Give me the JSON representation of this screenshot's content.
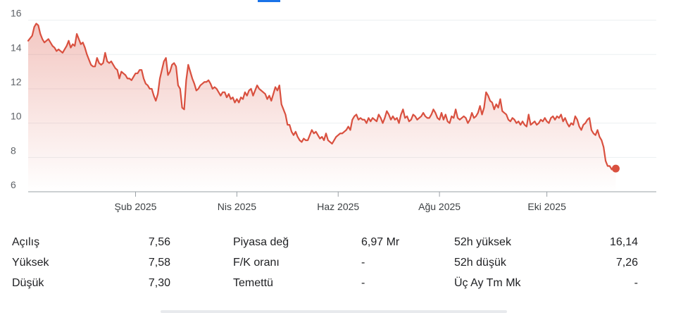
{
  "chart_data": {
    "type": "area",
    "title": "",
    "xlabel": "",
    "ylabel": "",
    "ylim": [
      6,
      16.6
    ],
    "yticks": [
      6,
      8,
      10,
      12,
      14,
      16
    ],
    "ytick_labels": [
      "6",
      "8",
      "10",
      "12",
      "14",
      "16"
    ],
    "xlim": [
      0,
      310
    ],
    "xticks": [
      {
        "label": "Şub 2025",
        "x": 53
      },
      {
        "label": "Nis 2025",
        "x": 103
      },
      {
        "label": "Haz 2025",
        "x": 153
      },
      {
        "label": "Ağu 2025",
        "x": 203
      },
      {
        "label": "Eki 2025",
        "x": 256
      }
    ],
    "line_color": "#d9503f",
    "fill_color": "#d9503f",
    "series": [
      {
        "points": [
          [
            0,
            14.8
          ],
          [
            2,
            15.1
          ],
          [
            3,
            15.6
          ],
          [
            4,
            15.8
          ],
          [
            5,
            15.7
          ],
          [
            6,
            15.2
          ],
          [
            7,
            14.9
          ],
          [
            8,
            14.7
          ],
          [
            9,
            14.8
          ],
          [
            10,
            14.9
          ],
          [
            11,
            14.7
          ],
          [
            12,
            14.5
          ],
          [
            13,
            14.4
          ],
          [
            14,
            14.2
          ],
          [
            15,
            14.3
          ],
          [
            16,
            14.2
          ],
          [
            17,
            14.1
          ],
          [
            18,
            14.3
          ],
          [
            19,
            14.5
          ],
          [
            20,
            14.8
          ],
          [
            21,
            14.4
          ],
          [
            22,
            14.6
          ],
          [
            23,
            14.5
          ],
          [
            24,
            15.2
          ],
          [
            25,
            14.9
          ],
          [
            26,
            14.6
          ],
          [
            27,
            14.7
          ],
          [
            28,
            14.4
          ],
          [
            29,
            14.0
          ],
          [
            30,
            13.7
          ],
          [
            31,
            13.4
          ],
          [
            32,
            13.3
          ],
          [
            33,
            13.3
          ],
          [
            34,
            13.8
          ],
          [
            35,
            13.5
          ],
          [
            36,
            13.4
          ],
          [
            37,
            13.5
          ],
          [
            38,
            14.1
          ],
          [
            39,
            13.6
          ],
          [
            40,
            13.5
          ],
          [
            41,
            13.6
          ],
          [
            42,
            13.4
          ],
          [
            43,
            13.2
          ],
          [
            44,
            13.1
          ],
          [
            45,
            12.6
          ],
          [
            46,
            13.0
          ],
          [
            47,
            12.9
          ],
          [
            48,
            12.8
          ],
          [
            49,
            12.6
          ],
          [
            50,
            12.6
          ],
          [
            51,
            12.5
          ],
          [
            52,
            12.7
          ],
          [
            53,
            12.9
          ],
          [
            54,
            12.9
          ],
          [
            55,
            13.1
          ],
          [
            56,
            13.1
          ],
          [
            57,
            12.6
          ],
          [
            58,
            12.3
          ],
          [
            59,
            12.2
          ],
          [
            60,
            12.0
          ],
          [
            61,
            12.0
          ],
          [
            62,
            11.6
          ],
          [
            63,
            11.3
          ],
          [
            64,
            11.7
          ],
          [
            65,
            12.6
          ],
          [
            66,
            13.1
          ],
          [
            67,
            13.6
          ],
          [
            68,
            13.8
          ],
          [
            69,
            12.8
          ],
          [
            70,
            13.0
          ],
          [
            71,
            13.4
          ],
          [
            72,
            13.5
          ],
          [
            73,
            13.3
          ],
          [
            74,
            12.2
          ],
          [
            75,
            12.0
          ],
          [
            76,
            10.9
          ],
          [
            77,
            10.8
          ],
          [
            78,
            12.5
          ],
          [
            79,
            13.4
          ],
          [
            80,
            13.0
          ],
          [
            81,
            12.6
          ],
          [
            82,
            12.3
          ],
          [
            83,
            11.9
          ],
          [
            84,
            12.0
          ],
          [
            85,
            12.2
          ],
          [
            86,
            12.3
          ],
          [
            87,
            12.4
          ],
          [
            88,
            12.4
          ],
          [
            89,
            12.5
          ],
          [
            90,
            12.3
          ],
          [
            91,
            12.0
          ],
          [
            92,
            12.1
          ],
          [
            93,
            12.0
          ],
          [
            94,
            11.8
          ],
          [
            95,
            11.6
          ],
          [
            96,
            11.8
          ],
          [
            97,
            11.8
          ],
          [
            98,
            11.5
          ],
          [
            99,
            11.7
          ],
          [
            100,
            11.4
          ],
          [
            101,
            11.5
          ],
          [
            102,
            11.2
          ],
          [
            103,
            11.4
          ],
          [
            104,
            11.2
          ],
          [
            105,
            11.5
          ],
          [
            106,
            11.4
          ],
          [
            107,
            11.8
          ],
          [
            108,
            11.6
          ],
          [
            109,
            11.9
          ],
          [
            110,
            12.0
          ],
          [
            111,
            11.6
          ],
          [
            112,
            11.9
          ],
          [
            113,
            12.2
          ],
          [
            114,
            12.0
          ],
          [
            115,
            11.9
          ],
          [
            116,
            11.8
          ],
          [
            117,
            11.7
          ],
          [
            118,
            11.4
          ],
          [
            119,
            11.6
          ],
          [
            120,
            11.3
          ],
          [
            121,
            11.7
          ],
          [
            122,
            12.1
          ],
          [
            123,
            11.9
          ],
          [
            124,
            12.2
          ],
          [
            125,
            11.1
          ],
          [
            126,
            10.8
          ],
          [
            127,
            10.5
          ],
          [
            128,
            9.9
          ],
          [
            129,
            9.9
          ],
          [
            130,
            9.5
          ],
          [
            131,
            9.3
          ],
          [
            132,
            9.5
          ],
          [
            133,
            9.2
          ],
          [
            134,
            9.0
          ],
          [
            135,
            8.9
          ],
          [
            136,
            9.1
          ],
          [
            137,
            9.0
          ],
          [
            138,
            9.0
          ],
          [
            139,
            9.3
          ],
          [
            140,
            9.6
          ],
          [
            141,
            9.4
          ],
          [
            142,
            9.5
          ],
          [
            143,
            9.3
          ],
          [
            144,
            9.1
          ],
          [
            145,
            9.2
          ],
          [
            146,
            9.0
          ],
          [
            147,
            9.4
          ],
          [
            148,
            9.0
          ],
          [
            149,
            8.9
          ],
          [
            150,
            8.8
          ],
          [
            151,
            9.0
          ],
          [
            152,
            9.2
          ],
          [
            153,
            9.3
          ],
          [
            154,
            9.4
          ],
          [
            155,
            9.4
          ],
          [
            156,
            9.5
          ],
          [
            157,
            9.6
          ],
          [
            158,
            9.8
          ],
          [
            159,
            9.6
          ],
          [
            160,
            10.2
          ],
          [
            161,
            10.4
          ],
          [
            162,
            10.5
          ],
          [
            163,
            10.2
          ],
          [
            164,
            10.3
          ],
          [
            165,
            10.2
          ],
          [
            166,
            10.2
          ],
          [
            167,
            10.0
          ],
          [
            168,
            10.3
          ],
          [
            169,
            10.1
          ],
          [
            170,
            10.3
          ],
          [
            171,
            10.2
          ],
          [
            172,
            10.1
          ],
          [
            173,
            10.5
          ],
          [
            174,
            10.3
          ],
          [
            175,
            10.0
          ],
          [
            176,
            10.3
          ],
          [
            177,
            10.7
          ],
          [
            178,
            10.5
          ],
          [
            179,
            10.2
          ],
          [
            180,
            10.4
          ],
          [
            181,
            10.2
          ],
          [
            182,
            10.3
          ],
          [
            183,
            10.0
          ],
          [
            184,
            10.5
          ],
          [
            185,
            10.8
          ],
          [
            186,
            10.3
          ],
          [
            187,
            10.4
          ],
          [
            188,
            10.1
          ],
          [
            189,
            10.2
          ],
          [
            190,
            10.5
          ],
          [
            191,
            10.4
          ],
          [
            192,
            10.2
          ],
          [
            193,
            10.3
          ],
          [
            194,
            10.4
          ],
          [
            195,
            10.6
          ],
          [
            196,
            10.4
          ],
          [
            197,
            10.3
          ],
          [
            198,
            10.3
          ],
          [
            199,
            10.5
          ],
          [
            200,
            10.8
          ],
          [
            201,
            10.6
          ],
          [
            202,
            10.3
          ],
          [
            203,
            10.2
          ],
          [
            204,
            10.6
          ],
          [
            205,
            10.2
          ],
          [
            206,
            10.5
          ],
          [
            207,
            10.1
          ],
          [
            208,
            10.0
          ],
          [
            209,
            10.4
          ],
          [
            210,
            10.3
          ],
          [
            211,
            10.8
          ],
          [
            212,
            10.3
          ],
          [
            213,
            10.2
          ],
          [
            214,
            10.3
          ],
          [
            215,
            10.4
          ],
          [
            216,
            10.3
          ],
          [
            217,
            10.0
          ],
          [
            218,
            10.2
          ],
          [
            219,
            10.6
          ],
          [
            220,
            10.3
          ],
          [
            221,
            10.4
          ],
          [
            222,
            10.6
          ],
          [
            223,
            11.0
          ],
          [
            224,
            10.5
          ],
          [
            225,
            10.9
          ],
          [
            226,
            11.8
          ],
          [
            227,
            11.6
          ],
          [
            228,
            11.3
          ],
          [
            229,
            11.2
          ],
          [
            230,
            10.8
          ],
          [
            231,
            11.1
          ],
          [
            232,
            10.9
          ],
          [
            233,
            11.4
          ],
          [
            234,
            10.7
          ],
          [
            235,
            10.6
          ],
          [
            236,
            10.5
          ],
          [
            237,
            10.2
          ],
          [
            238,
            10.1
          ],
          [
            239,
            10.3
          ],
          [
            240,
            10.2
          ],
          [
            241,
            10.0
          ],
          [
            242,
            10.1
          ],
          [
            243,
            9.9
          ],
          [
            244,
            10.1
          ],
          [
            245,
            9.9
          ],
          [
            246,
            9.8
          ],
          [
            247,
            10.5
          ],
          [
            248,
            9.9
          ],
          [
            249,
            10.0
          ],
          [
            250,
            10.1
          ],
          [
            251,
            9.9
          ],
          [
            252,
            10.0
          ],
          [
            253,
            10.2
          ],
          [
            254,
            10.1
          ],
          [
            255,
            10.3
          ],
          [
            256,
            10.1
          ],
          [
            257,
            10.0
          ],
          [
            258,
            10.3
          ],
          [
            259,
            10.4
          ],
          [
            260,
            10.2
          ],
          [
            261,
            10.4
          ],
          [
            262,
            10.3
          ],
          [
            263,
            10.5
          ],
          [
            264,
            10.1
          ],
          [
            265,
            10.3
          ],
          [
            266,
            10.0
          ],
          [
            267,
            9.8
          ],
          [
            268,
            10.0
          ],
          [
            269,
            9.9
          ],
          [
            270,
            10.4
          ],
          [
            271,
            10.2
          ],
          [
            272,
            9.8
          ],
          [
            273,
            9.6
          ],
          [
            274,
            9.9
          ],
          [
            275,
            10.0
          ],
          [
            276,
            10.2
          ],
          [
            277,
            10.3
          ],
          [
            278,
            9.6
          ],
          [
            279,
            9.4
          ],
          [
            280,
            9.3
          ],
          [
            281,
            9.6
          ],
          [
            282,
            9.2
          ],
          [
            283,
            9.0
          ],
          [
            284,
            8.6
          ],
          [
            285,
            7.8
          ],
          [
            286,
            7.5
          ],
          [
            287,
            7.5
          ],
          [
            288,
            7.3
          ],
          [
            289,
            7.4
          ],
          [
            290,
            7.35
          ]
        ]
      }
    ],
    "last_point_marker": true
  },
  "stats": {
    "col1": [
      {
        "label": "Açılış",
        "value": "7,56"
      },
      {
        "label": "Yüksek",
        "value": "7,58"
      },
      {
        "label": "Düşük",
        "value": "7,30"
      }
    ],
    "col2": [
      {
        "label": "Piyasa değ",
        "value": "6,97 Mr"
      },
      {
        "label": "F/K oranı",
        "value": "-"
      },
      {
        "label": "Temettü",
        "value": "-"
      }
    ],
    "col3": [
      {
        "label": "52h yüksek",
        "value": "16,14"
      },
      {
        "label": "52h düşük",
        "value": "7,26"
      },
      {
        "label": "Üç Ay Tm Mk",
        "value": "-"
      }
    ]
  }
}
